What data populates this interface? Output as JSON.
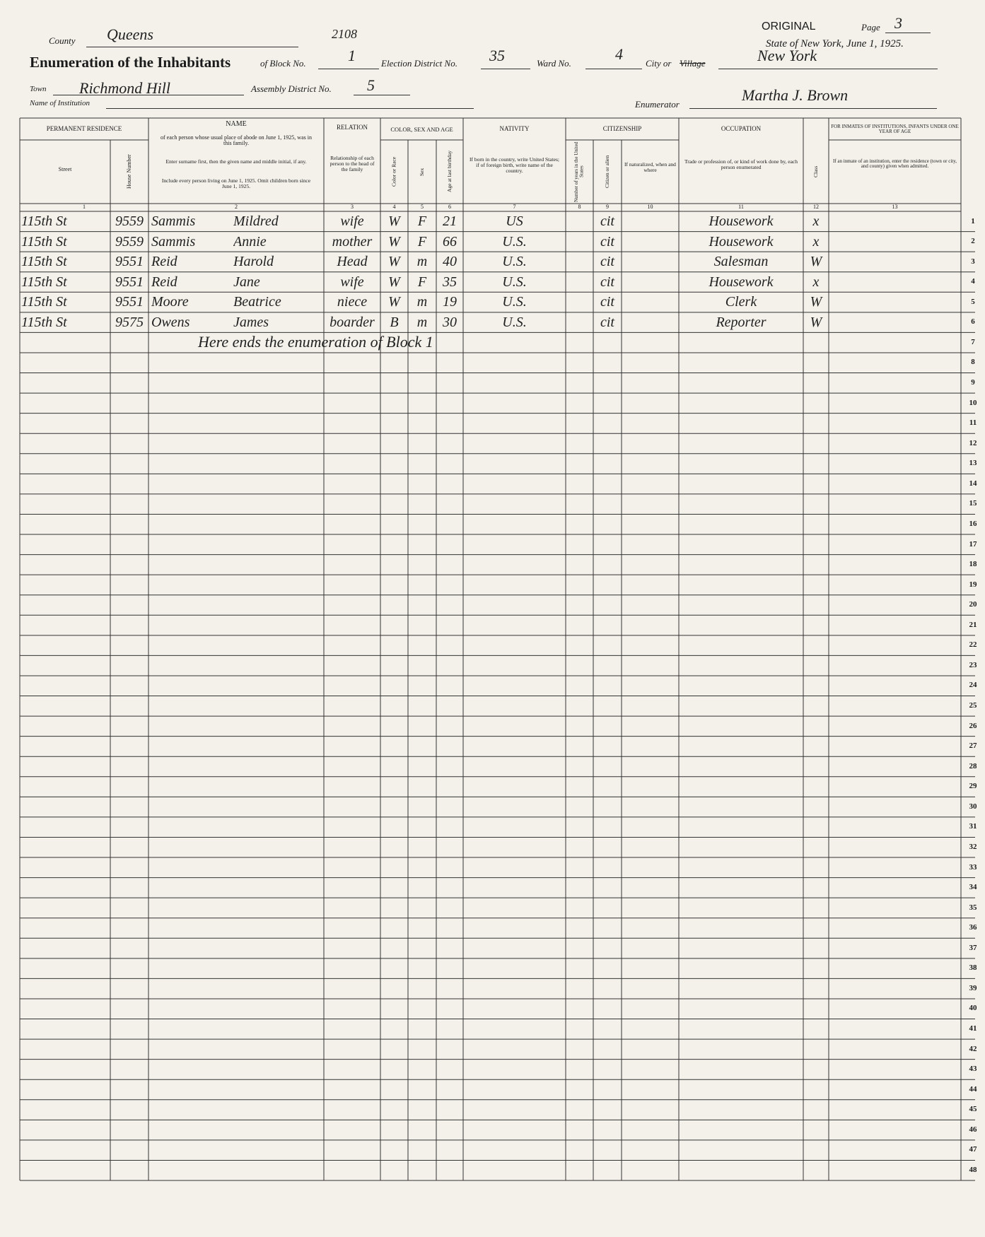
{
  "header": {
    "original": "ORIGINAL",
    "page_label": "Page",
    "page": 3,
    "state_date": "State of New York, June 1, 1925.",
    "county_label": "County",
    "county": "Queens",
    "stamp": 2108,
    "title": "Enumeration of the Inhabitants",
    "block_label": "of Block No.",
    "block": 1,
    "election_district_label": "Election District No.",
    "election_district": 35,
    "ward_label": "Ward No.",
    "ward": 4,
    "city_label": "City or",
    "village_label": "Village",
    "city": "New York",
    "town_label": "Town",
    "town": "Richmond Hill",
    "assembly_district_label": "Assembly District No.",
    "assembly_district": 5,
    "institution_label": "Name of Institution",
    "enumerator_label": "Enumerator",
    "enumerator": "Martha J. Brown"
  },
  "columns": {
    "residence": "PERMANENT RESIDENCE",
    "street": "Street",
    "house_number": "House Number",
    "name": "NAME",
    "name_note": "of each person whose usual place of abode on June 1, 1925, was in this family.",
    "name_instruction": "Enter surname first, then the given name and middle initial, if any.",
    "name_include": "Include every person living on June 1, 1925. Omit children born since June 1, 1925.",
    "relation": "RELATION",
    "relation_note": "Relationship of each person to the head of the family",
    "color_sex_age": "COLOR, SEX AND AGE",
    "color": "Color or Race",
    "sex": "Sex",
    "age": "Age at last birthday",
    "nativity": "NATIVITY",
    "nativity_note": "If born in the country, write United States; if of foreign birth, write name of the country.",
    "citizenship": "CITIZENSHIP",
    "years": "Number of years in the United States",
    "citizen": "Citizen or alien",
    "naturalized": "If naturalized, when and where",
    "occupation": "OCCUPATION",
    "occupation_note": "Trade or profession of, or kind of work done by, each person enumerated",
    "class": "Class",
    "institution": "FOR INMATES OF INSTITUTIONS, INFANTS UNDER ONE YEAR OF AGE",
    "institution_note": "If an inmate of an institution, enter the residence (town or city, and county) given when admitted."
  },
  "column_numbers": [
    1,
    2,
    3,
    4,
    5,
    6,
    7,
    8,
    9,
    10,
    11,
    12,
    13
  ],
  "rows": [
    {
      "street": "115th St",
      "house_number": 9559,
      "surname": "Sammis",
      "given_name": "Mildred",
      "relation": "wife",
      "color": "W",
      "sex": "F",
      "age": 21,
      "nativity": "US",
      "citizenship": "cit",
      "occupation": "Housework",
      "class": "x"
    },
    {
      "street": "115th St",
      "house_number": 9559,
      "surname": "Sammis",
      "given_name": "Annie",
      "relation": "mother",
      "color": "W",
      "sex": "F",
      "age": 66,
      "nativity": "U.S.",
      "citizenship": "cit",
      "occupation": "Housework",
      "class": "x"
    },
    {
      "street": "115th St",
      "house_number": 9551,
      "surname": "Reid",
      "given_name": "Harold",
      "relation": "Head",
      "color": "W",
      "sex": "m",
      "age": 40,
      "nativity": "U.S.",
      "citizenship": "cit",
      "occupation": "Salesman",
      "class": "W"
    },
    {
      "street": "115th St",
      "house_number": 9551,
      "surname": "Reid",
      "given_name": "Jane",
      "relation": "wife",
      "color": "W",
      "sex": "F",
      "age": 35,
      "nativity": "U.S.",
      "citizenship": "cit",
      "occupation": "Housework",
      "class": "x"
    },
    {
      "street": "115th St",
      "house_number": 9551,
      "surname": "Moore",
      "given_name": "Beatrice",
      "relation": "niece",
      "color": "W",
      "sex": "m",
      "age": 19,
      "nativity": "U.S.",
      "citizenship": "cit",
      "occupation": "Clerk",
      "class": "W"
    },
    {
      "street": "115th St",
      "house_number": 9575,
      "surname": "Owens",
      "given_name": "James",
      "relation": "boarder",
      "color": "B",
      "sex": "m",
      "age": 30,
      "nativity": "U.S.",
      "citizenship": "cit",
      "occupation": "Reporter",
      "class": "W"
    }
  ],
  "closing_note": "Here ends the enumeration of Block 1",
  "line_numbers": [
    1,
    2,
    3,
    4,
    5,
    6,
    7,
    8,
    9,
    10,
    11,
    12,
    13,
    14,
    15,
    16,
    17,
    18,
    19,
    20,
    21,
    22,
    23,
    24,
    25,
    26,
    27,
    28,
    29,
    30,
    31,
    32,
    33,
    34,
    35,
    36,
    37,
    38,
    39,
    40,
    41,
    42,
    43,
    44,
    45,
    46,
    47,
    48
  ]
}
